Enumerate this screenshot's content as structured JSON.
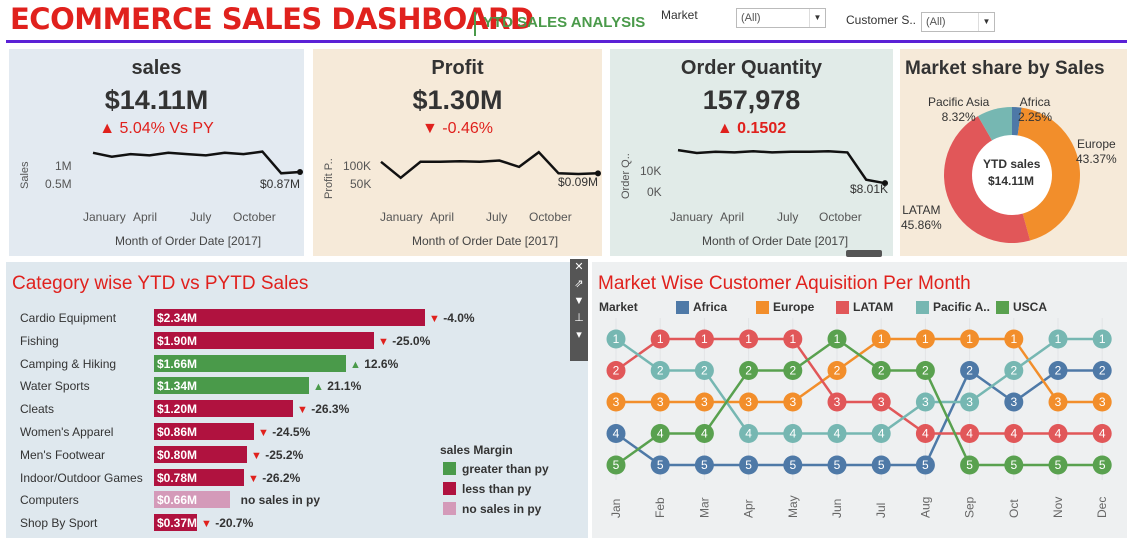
{
  "header": {
    "title": "ECOMMERCE SALES DASHBOARD",
    "subtitle": "YTD SALES ANALYSIS",
    "filters": [
      {
        "label": "Market",
        "value": "(All)"
      },
      {
        "label": "Customer S..",
        "value": "(All)"
      }
    ]
  },
  "kpis": {
    "sales": {
      "title": "sales",
      "value": "$14.11M",
      "delta": "5.04% Vs PY",
      "delta_arrow": "▲",
      "axis_title": "Sales",
      "y_ticks": [
        "1M",
        "0.5M"
      ],
      "end_label": "$0.87M",
      "months": [
        "January",
        "April",
        "July",
        "October"
      ],
      "x_caption": "Month of Order Date [2017]",
      "trend": [
        1.02,
        0.99,
        1.01,
        1.0,
        1.02,
        1.01,
        1.0,
        1.02,
        1.01,
        1.03,
        0.86,
        0.87
      ]
    },
    "profit": {
      "title": "Profit",
      "value": "$1.30M",
      "delta": "-0.46%",
      "delta_arrow": "▼",
      "axis_title": "Profit P..",
      "y_ticks": [
        "100K",
        "50K"
      ],
      "end_label": "$0.09M",
      "months": [
        "January",
        "April",
        "July",
        "October"
      ],
      "x_caption": "Month of Order Date [2017]",
      "trend": [
        110,
        85,
        110,
        110,
        111,
        110,
        112,
        102,
        125,
        92,
        91,
        92
      ]
    },
    "orders": {
      "title": "Order Quantity",
      "value": "157,978",
      "delta": "0.1502",
      "delta_arrow": "▲",
      "axis_title": "Order Q..",
      "y_ticks": [
        "10K",
        "0K"
      ],
      "end_label": "$8.01K",
      "months": [
        "January",
        "April",
        "July",
        "October"
      ],
      "x_caption": "Month of Order Date [2017]",
      "trend": [
        13.8,
        13.3,
        13.5,
        13.4,
        13.6,
        13.4,
        13.5,
        13.5,
        13.6,
        13.4,
        8.6,
        8.0
      ]
    }
  },
  "market_share": {
    "title": "Market share by Sales",
    "center_title": "YTD sales",
    "center_value": "$14.11M",
    "segments": [
      {
        "name": "Africa",
        "pct": "2.25%",
        "value": 2.25,
        "color": "#4e79a7"
      },
      {
        "name": "Europe",
        "pct": "43.37%",
        "value": 43.37,
        "color": "#f28e2b"
      },
      {
        "name": "LATAM",
        "pct": "45.86%",
        "value": 45.86,
        "color": "#e15759"
      },
      {
        "name": "Pacific Asia",
        "pct": "8.32%",
        "value": 8.32,
        "color": "#76b7b2"
      }
    ]
  },
  "category": {
    "title": "Category wise YTD vs PYTD Sales",
    "rows": [
      {
        "name": "Cardio Equipment",
        "value": "$2.34M",
        "amount": 2.34,
        "status": "less",
        "delta": "-4.0%"
      },
      {
        "name": "Fishing",
        "value": "$1.90M",
        "amount": 1.9,
        "status": "less",
        "delta": "-25.0%"
      },
      {
        "name": "Camping & Hiking",
        "value": "$1.66M",
        "amount": 1.66,
        "status": "greater",
        "delta": "12.6%"
      },
      {
        "name": "Water Sports",
        "value": "$1.34M",
        "amount": 1.34,
        "status": "greater",
        "delta": "21.1%"
      },
      {
        "name": "Cleats",
        "value": "$1.20M",
        "amount": 1.2,
        "status": "less",
        "delta": "-26.3%"
      },
      {
        "name": "Women's Apparel",
        "value": "$0.86M",
        "amount": 0.86,
        "status": "less",
        "delta": "-24.5%"
      },
      {
        "name": "Men's Footwear",
        "value": "$0.80M",
        "amount": 0.8,
        "status": "less",
        "delta": "-25.2%"
      },
      {
        "name": "Indoor/Outdoor Games",
        "value": "$0.78M",
        "amount": 0.78,
        "status": "less",
        "delta": "-26.2%"
      },
      {
        "name": "Computers",
        "value": "$0.66M",
        "amount": 0.66,
        "status": "none",
        "delta": "no sales in py"
      },
      {
        "name": "Shop By Sport",
        "value": "$0.37M",
        "amount": 0.37,
        "status": "less",
        "delta": "-20.7%"
      }
    ],
    "legend": {
      "title": "sales Margin",
      "items": [
        {
          "label": "greater than py",
          "color": "#4a9a4a"
        },
        {
          "label": "less than py",
          "color": "#b0123f"
        },
        {
          "label": "no sales in py",
          "color": "#d49ab9"
        }
      ]
    }
  },
  "market": {
    "title": "Market Wise Customer Aquisition Per Month",
    "legend_title": "Market",
    "months": [
      "Jan",
      "Feb",
      "Mar",
      "Apr",
      "May",
      "Jun",
      "Jul",
      "Aug",
      "Sep",
      "Oct",
      "Nov",
      "Dec"
    ],
    "series": [
      {
        "name": "Africa",
        "color": "#4e79a7",
        "ranks": [
          4,
          5,
          5,
          5,
          5,
          5,
          5,
          5,
          2,
          3,
          2,
          2
        ]
      },
      {
        "name": "Europe",
        "color": "#f28e2b",
        "ranks": [
          3,
          3,
          3,
          3,
          3,
          2,
          1,
          1,
          1,
          1,
          3,
          3
        ]
      },
      {
        "name": "LATAM",
        "color": "#e15759",
        "ranks": [
          2,
          1,
          1,
          1,
          1,
          3,
          3,
          4,
          4,
          4,
          4,
          4
        ]
      },
      {
        "name": "Pacific A..",
        "color": "#76b7b2",
        "ranks": [
          1,
          2,
          2,
          4,
          4,
          4,
          4,
          3,
          3,
          2,
          1,
          1
        ]
      },
      {
        "name": "USCA",
        "color": "#59a14f",
        "ranks": [
          5,
          4,
          4,
          2,
          2,
          1,
          2,
          2,
          5,
          5,
          5,
          5
        ]
      }
    ]
  }
}
